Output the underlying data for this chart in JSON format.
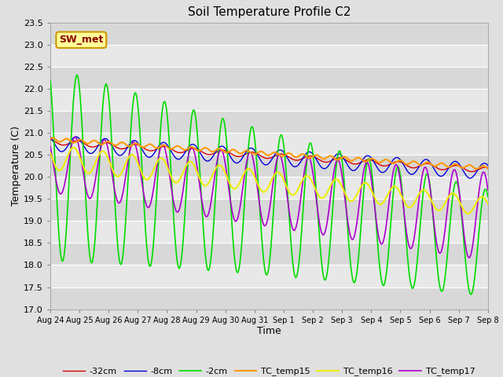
{
  "title": "Soil Temperature Profile C2",
  "xlabel": "Time",
  "ylabel": "Temperature (C)",
  "ylim": [
    17.0,
    23.5
  ],
  "yticks": [
    17.0,
    17.5,
    18.0,
    18.5,
    19.0,
    19.5,
    20.0,
    20.5,
    21.0,
    21.5,
    22.0,
    22.5,
    23.0,
    23.5
  ],
  "annotation_text": "SW_met",
  "colors": {
    "-32cm": "#dd0000",
    "-8cm": "#0000dd",
    "-2cm": "#00dd00",
    "TC_temp15": "#ff9900",
    "TC_temp16": "#eeee00",
    "TC_temp17": "#aa00cc"
  },
  "legend_labels": [
    "-32cm",
    "-8cm",
    "-2cm",
    "TC_temp15",
    "TC_temp16",
    "TC_temp17"
  ],
  "bg_color": "#e0e0e0",
  "plot_bg_color": "#e8e8e8",
  "n_points": 1500,
  "start_day": 0,
  "end_day": 15,
  "xtick_days": [
    0,
    1,
    2,
    3,
    4,
    5,
    6,
    7,
    8,
    9,
    10,
    11,
    12,
    13,
    14,
    15
  ],
  "xtick_labels": [
    "Aug 24",
    "Aug 25",
    "Aug 26",
    "Aug 27",
    "Aug 28",
    "Aug 29",
    "Aug 30",
    "Aug 31",
    "Sep 1",
    "Sep 2",
    "Sep 3",
    "Sep 4",
    "Sep 5",
    "Sep 6",
    "Sep 7",
    "Sep 8"
  ]
}
